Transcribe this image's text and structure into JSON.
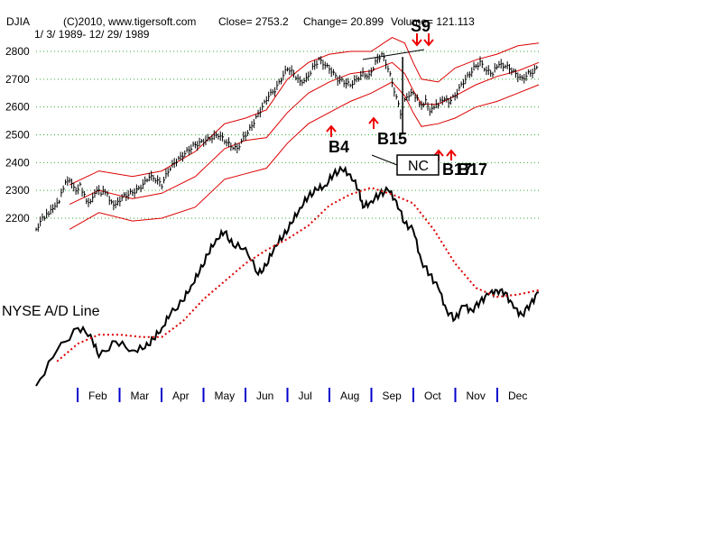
{
  "header": {
    "symbol": "DJIA",
    "copyright": "(C)2010, www.tigersoft.com",
    "close": "Close=  2753.2",
    "change": "Change= 20.899",
    "volume": "Volume=  121.113",
    "date_range": "1/ 3/ 1989- 12/ 29/ 1989"
  },
  "colors": {
    "price": "#000000",
    "band": "#dd0000",
    "arrow": "#ee0000",
    "grid": "#33aa33",
    "months": "#0000cc"
  },
  "chart_data": {
    "type": "line",
    "title": "DJIA 1989",
    "xlabel": "",
    "ylabel": "",
    "ylim": [
      2130,
      2820
    ],
    "y_ticks": [
      2200,
      2300,
      2400,
      2500,
      2600,
      2700,
      2800
    ],
    "x_months": [
      "Feb",
      "Mar",
      "Apr",
      "May",
      "Jun",
      "Jul",
      "Aug",
      "Sep",
      "Oct",
      "Nov",
      "Dec"
    ],
    "series": [
      {
        "name": "DJIA",
        "style": "daily-bars",
        "x": [
          0,
          0.15,
          0.25,
          0.35,
          0.45,
          0.55,
          0.65,
          0.75,
          0.85,
          0.95,
          1.05,
          1.15,
          1.25,
          1.35,
          1.45,
          1.55,
          1.65,
          1.75,
          1.85,
          1.95,
          2.1,
          2.25,
          2.4,
          2.55,
          2.7,
          2.85,
          3.0,
          3.15,
          3.3,
          3.45,
          3.6,
          3.75,
          3.9,
          4.05,
          4.2,
          4.35,
          4.5,
          4.65,
          4.8,
          4.95,
          5.1,
          5.25,
          5.4,
          5.55,
          5.7,
          5.85,
          6.0,
          6.15,
          6.3,
          6.45,
          6.6,
          6.75,
          6.9,
          7.05,
          7.2,
          7.35,
          7.5,
          7.65,
          7.8,
          7.95,
          8.1,
          8.25,
          8.4,
          8.55,
          8.7,
          8.85,
          9.0,
          9.1,
          9.2,
          9.3,
          9.4,
          9.5,
          9.6,
          9.7,
          9.85,
          10.0,
          10.15,
          10.3,
          10.45,
          10.6,
          10.75,
          10.9,
          11.0,
          11.15,
          11.3,
          11.45,
          11.6,
          11.75,
          11.9,
          12.0
        ],
        "values": [
          2160,
          2200,
          2210,
          2225,
          2240,
          2260,
          2310,
          2340,
          2330,
          2300,
          2320,
          2280,
          2250,
          2270,
          2300,
          2290,
          2300,
          2270,
          2250,
          2260,
          2280,
          2290,
          2300,
          2320,
          2350,
          2340,
          2320,
          2370,
          2400,
          2420,
          2440,
          2460,
          2470,
          2480,
          2490,
          2500,
          2480,
          2460,
          2450,
          2490,
          2520,
          2560,
          2600,
          2640,
          2660,
          2700,
          2740,
          2720,
          2690,
          2700,
          2740,
          2770,
          2750,
          2730,
          2700,
          2690,
          2680,
          2700,
          2720,
          2710,
          2760,
          2790,
          2740,
          2660,
          2580,
          2640,
          2650,
          2630,
          2600,
          2620,
          2580,
          2600,
          2610,
          2630,
          2620,
          2640,
          2680,
          2710,
          2740,
          2760,
          2730,
          2720,
          2750,
          2750,
          2740,
          2720,
          2700,
          2720,
          2730,
          2750
        ]
      },
      {
        "name": "Upper band",
        "x": [
          0.8,
          1.5,
          2.3,
          3.0,
          3.8,
          4.5,
          5.0,
          5.5,
          6.0,
          6.5,
          7.0,
          7.5,
          8.0,
          8.5,
          8.8,
          9.0,
          9.2,
          9.6,
          10.0,
          10.5,
          11.0,
          11.5,
          12.0
        ],
        "values": [
          2320,
          2370,
          2350,
          2370,
          2440,
          2540,
          2560,
          2590,
          2700,
          2760,
          2790,
          2800,
          2800,
          2850,
          2830,
          2760,
          2700,
          2690,
          2740,
          2770,
          2790,
          2820,
          2830
        ]
      },
      {
        "name": "Moving average",
        "x": [
          0.8,
          1.5,
          2.3,
          3.0,
          3.8,
          4.5,
          5.0,
          5.5,
          6.0,
          6.5,
          7.0,
          7.5,
          8.0,
          8.5,
          8.8,
          9.0,
          9.2,
          9.6,
          10.0,
          10.5,
          11.0,
          11.5,
          12.0
        ],
        "values": [
          2250,
          2300,
          2270,
          2290,
          2350,
          2450,
          2480,
          2490,
          2580,
          2650,
          2690,
          2720,
          2730,
          2760,
          2720,
          2660,
          2610,
          2610,
          2640,
          2680,
          2710,
          2730,
          2760
        ]
      },
      {
        "name": "Lower band",
        "x": [
          0.8,
          1.5,
          2.3,
          3.0,
          3.8,
          4.5,
          5.0,
          5.5,
          6.0,
          6.5,
          7.0,
          7.5,
          8.0,
          8.5,
          8.8,
          9.0,
          9.2,
          9.6,
          10.0,
          10.5,
          11.0,
          11.5,
          12.0
        ],
        "values": [
          2160,
          2220,
          2190,
          2200,
          2240,
          2340,
          2360,
          2380,
          2470,
          2540,
          2580,
          2620,
          2650,
          2690,
          2640,
          2580,
          2530,
          2540,
          2560,
          2600,
          2620,
          2650,
          2680
        ]
      },
      {
        "name": "NYSE A/D Line",
        "values_scale": "relative",
        "x": [
          0,
          0.5,
          1.0,
          1.3,
          1.5,
          1.9,
          2.3,
          2.6,
          2.8,
          3.0,
          3.2,
          3.5,
          3.7,
          3.9,
          4.1,
          4.3,
          4.5,
          4.7,
          5.0,
          5.3,
          5.5,
          5.7,
          5.9,
          6.1,
          6.3,
          6.5,
          6.7,
          6.9,
          7.1,
          7.3,
          7.5,
          7.7,
          7.8,
          8.0,
          8.2,
          8.4,
          8.6,
          8.8,
          9.0,
          9.2,
          9.4,
          9.6,
          9.8,
          10.0,
          10.2,
          10.4,
          10.6,
          10.8,
          11.0,
          11.2,
          11.4,
          11.6,
          11.8,
          12.0
        ],
        "values": [
          0,
          1.6,
          2.6,
          2.3,
          1.3,
          2.0,
          1.6,
          1.7,
          2.1,
          2.6,
          3.2,
          3.8,
          4.5,
          5.1,
          5.9,
          6.6,
          6.9,
          6.3,
          6.2,
          5.0,
          5.4,
          6.3,
          6.7,
          7.3,
          8.0,
          8.5,
          8.8,
          9.0,
          9.5,
          9.7,
          9.5,
          8.8,
          8.0,
          8.3,
          8.6,
          8.8,
          8.3,
          7.3,
          7.0,
          5.6,
          5.0,
          4.4,
          3.4,
          3.0,
          3.6,
          3.4,
          3.8,
          4.1,
          4.3,
          4.2,
          3.5,
          3.2,
          3.7,
          4.2
        ]
      },
      {
        "name": "A/D moving average",
        "values_scale": "relative",
        "x": [
          0.5,
          1.0,
          1.5,
          2.0,
          2.5,
          3.0,
          3.5,
          4.0,
          4.5,
          5.0,
          5.5,
          6.0,
          6.5,
          7.0,
          7.5,
          8.0,
          8.5,
          9.0,
          9.5,
          10.0,
          10.5,
          11.0,
          11.5,
          12.0
        ],
        "values": [
          1.1,
          1.9,
          2.3,
          2.3,
          2.2,
          2.2,
          2.9,
          3.9,
          4.7,
          5.5,
          6.1,
          6.6,
          7.2,
          8.1,
          8.6,
          8.9,
          8.6,
          8.2,
          7.0,
          5.5,
          4.4,
          4.0,
          4.1,
          4.3
        ]
      }
    ],
    "annotations": [
      "S9",
      "B4",
      "B15",
      "NC",
      "B17",
      "B17",
      "NYSE A/D Line"
    ]
  },
  "signals": {
    "s9": "S9",
    "b4": "B4",
    "b15": "B15",
    "nc": "NC",
    "b17a": "B17",
    "b17b": "B17"
  },
  "ad_label": "NYSE A/D Line"
}
